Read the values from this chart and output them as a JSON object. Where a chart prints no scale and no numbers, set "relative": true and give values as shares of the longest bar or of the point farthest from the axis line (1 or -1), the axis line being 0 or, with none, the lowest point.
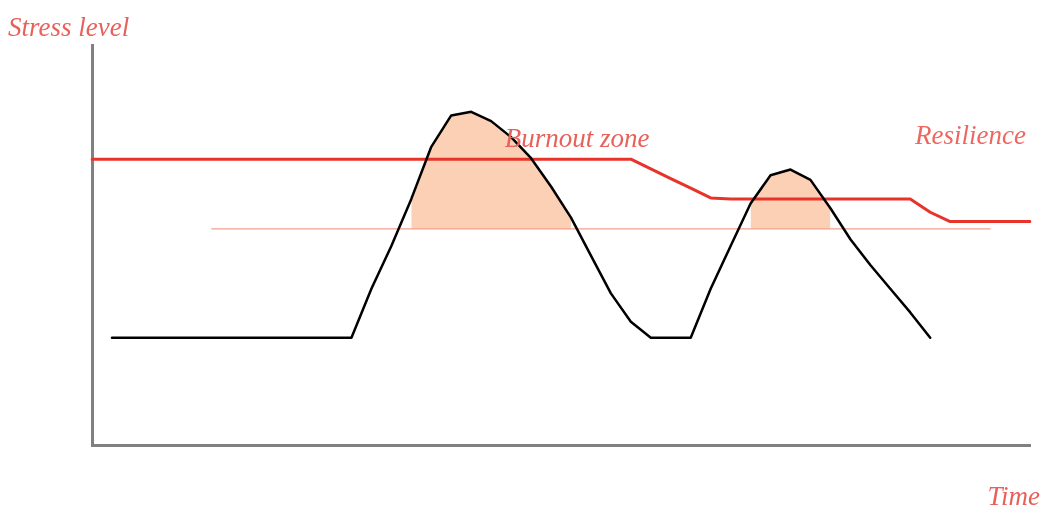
{
  "chart_data": {
    "type": "line",
    "relative": true,
    "xlabel": "Time",
    "ylabel": "Stress level",
    "legend": false,
    "grid": false,
    "marker": "none",
    "line_style": "solid",
    "annotations": [
      "Burnout zone"
    ],
    "categories": [
      null,
      null,
      null,
      null,
      null,
      null,
      null,
      null,
      null,
      null,
      null,
      null,
      null,
      null,
      null,
      null,
      null,
      null,
      null,
      null,
      null,
      null,
      null,
      null,
      null,
      null,
      null,
      null,
      null,
      null,
      null,
      null,
      null,
      null,
      null,
      null,
      null,
      null,
      null,
      null,
      null,
      null,
      null,
      null,
      null,
      null,
      null,
      null
    ],
    "series": [
      {
        "color": "#000000",
        "values": [
          null,
          0.323,
          0.323,
          0.323,
          0.323,
          0.323,
          0.323,
          0.323,
          0.323,
          0.323,
          0.323,
          0.323,
          0.323,
          0.323,
          0.47,
          0.598,
          0.739,
          0.895,
          0.989,
          1,
          0.972,
          0.924,
          0.861,
          0.776,
          0.683,
          0.569,
          0.456,
          0.371,
          0.323,
          0.323,
          0.323,
          0.47,
          0.598,
          0.725,
          0.81,
          0.827,
          0.796,
          0.711,
          0.618,
          0.541,
          0.47,
          0.399,
          0.323,
          null,
          null,
          null,
          null,
          null
        ],
        "lower": [
          null,
          null,
          null,
          null,
          null,
          null,
          null,
          null,
          null,
          null,
          null,
          null,
          null,
          null,
          null,
          null,
          0.649,
          0.649,
          0.649,
          0.649,
          0.649,
          0.649,
          0.649,
          0.649,
          0.649,
          null,
          null,
          null,
          null,
          null,
          null,
          null,
          null,
          0.649,
          0.649,
          0.649,
          0.649,
          0.649,
          null,
          null,
          null,
          null,
          null,
          null,
          null,
          null,
          null,
          null
        ],
        "upper": [
          null,
          null,
          null,
          null,
          null,
          null,
          null,
          null,
          null,
          null,
          null,
          null,
          null,
          null,
          null,
          null,
          0.739,
          0.895,
          0.989,
          1,
          0.972,
          0.924,
          0.861,
          0.776,
          0.683,
          null,
          null,
          null,
          null,
          null,
          null,
          null,
          null,
          0.725,
          0.81,
          0.827,
          0.796,
          0.711,
          null,
          null,
          null,
          null,
          null,
          null,
          null,
          null,
          null,
          null
        ]
      },
      {
        "name": "Resilience",
        "color": "#e8332a",
        "values": [
          0.858,
          0.858,
          0.858,
          0.858,
          0.858,
          0.858,
          0.858,
          0.858,
          0.858,
          0.858,
          0.858,
          0.858,
          0.858,
          0.858,
          0.858,
          0.858,
          0.858,
          0.858,
          0.858,
          0.858,
          0.858,
          0.858,
          0.858,
          0.858,
          0.858,
          0.858,
          0.858,
          0.858,
          0.829,
          0.8,
          0.771,
          0.742,
          0.739,
          0.739,
          0.739,
          0.739,
          0.739,
          0.739,
          0.739,
          0.739,
          0.739,
          0.739,
          0.699,
          0.671,
          0.671,
          0.671,
          0.671,
          0.671
        ]
      },
      {
        "color": "#f4a090",
        "values": [
          null,
          null,
          null,
          null,
          null,
          null,
          0.649,
          0.649,
          0.649,
          0.649,
          0.649,
          0.649,
          0.649,
          0.649,
          0.649,
          0.649,
          0.649,
          0.649,
          0.649,
          0.649,
          0.649,
          0.649,
          0.649,
          0.649,
          0.649,
          0.649,
          0.649,
          0.649,
          0.649,
          0.649,
          0.649,
          0.649,
          0.649,
          0.649,
          0.649,
          0.649,
          0.649,
          0.649,
          0.649,
          0.649,
          0.649,
          0.649,
          0.649,
          0.649,
          0.649,
          0.649,
          null,
          null
        ]
      }
    ]
  }
}
